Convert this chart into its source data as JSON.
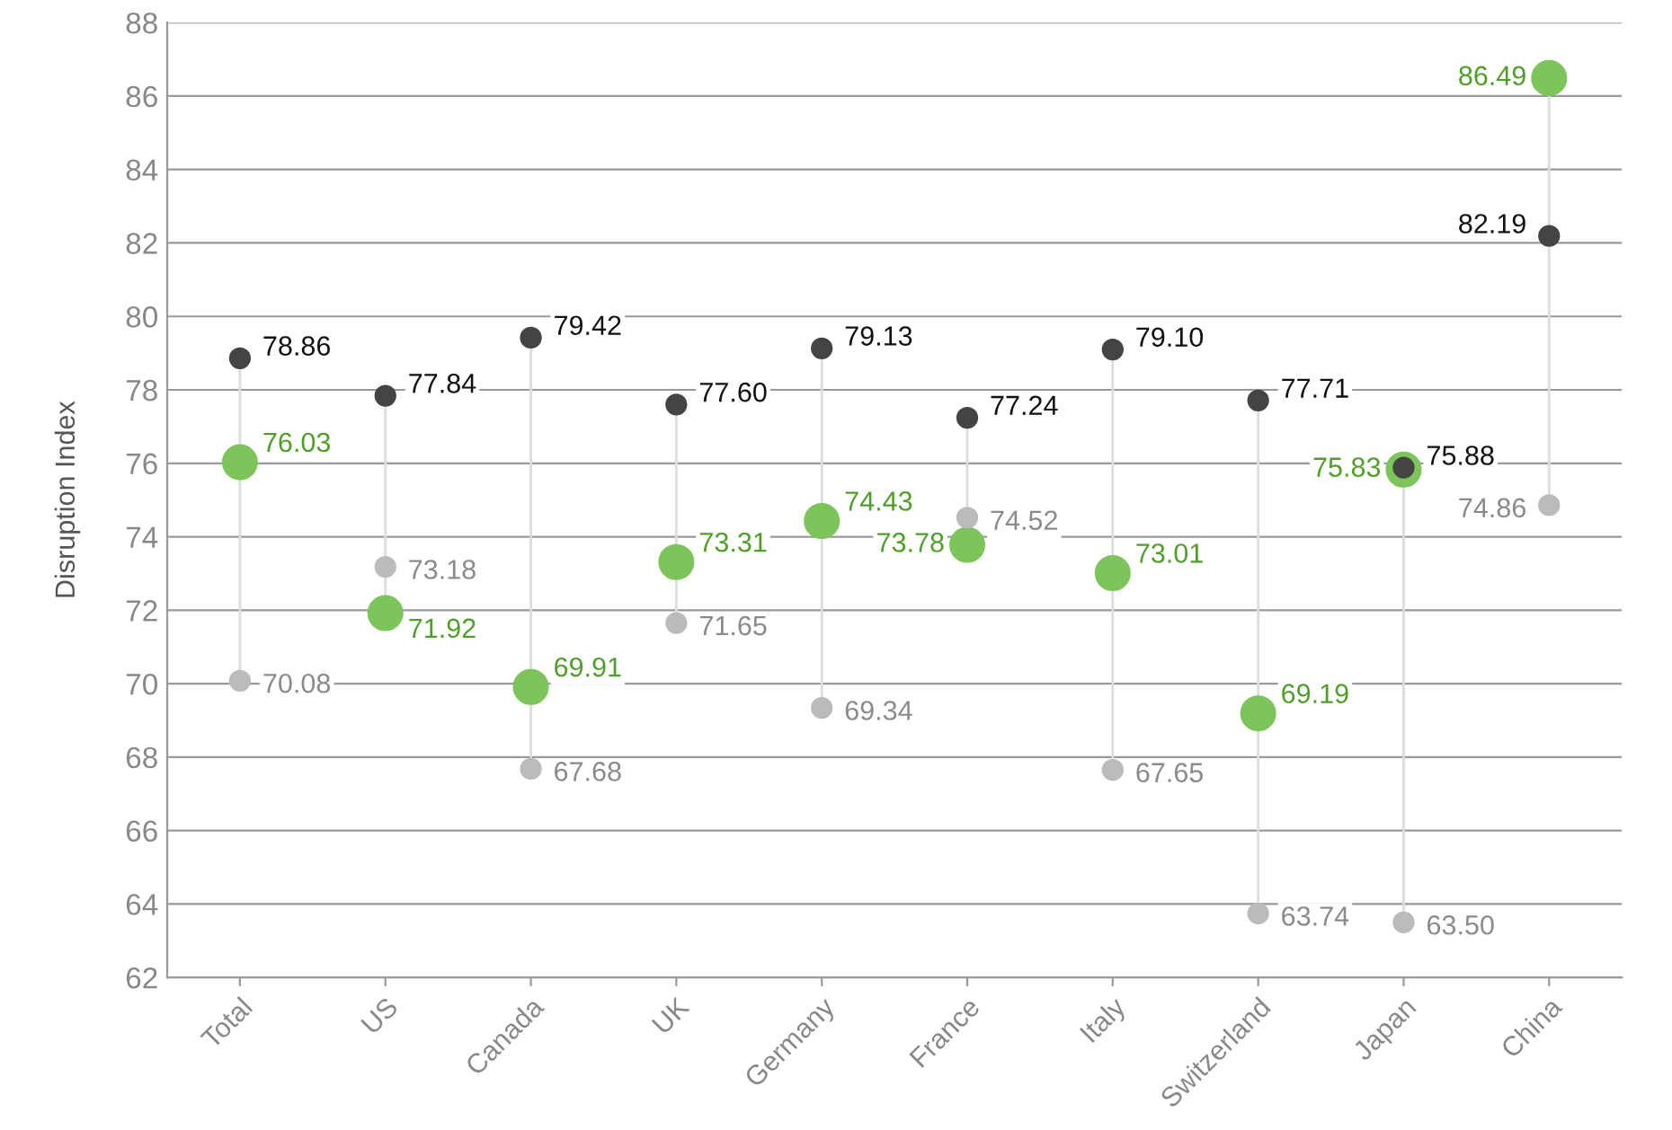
{
  "chart_data": {
    "type": "scatter",
    "ylabel": "Disruption Index",
    "categories": [
      "Total",
      "US",
      "Canada",
      "UK",
      "Germany",
      "France",
      "Italy",
      "Switzerland",
      "Japan",
      "China"
    ],
    "series": [
      {
        "color": "#444444",
        "values": [
          78.86,
          77.84,
          79.42,
          77.6,
          79.13,
          77.24,
          79.1,
          77.71,
          75.88,
          82.19
        ],
        "value_labels": [
          "78.86",
          "77.84",
          "79.42",
          "77.60",
          "79.13",
          "77.24",
          "79.10",
          "77.71",
          "75.88",
          "82.19"
        ]
      },
      {
        "color": "#7dc45a",
        "values": [
          76.03,
          71.92,
          69.91,
          73.31,
          74.43,
          73.78,
          73.01,
          69.19,
          75.83,
          86.49
        ],
        "value_labels": [
          "76.03",
          "71.92",
          "69.91",
          "73.31",
          "74.43",
          "73.78",
          "73.01",
          "69.19",
          "75.83",
          "86.49"
        ]
      },
      {
        "color": "#bbbbbb",
        "values": [
          70.08,
          73.18,
          67.68,
          71.65,
          69.34,
          74.52,
          67.65,
          63.74,
          63.5,
          74.86
        ],
        "value_labels": [
          "70.08",
          "73.18",
          "67.68",
          "71.65",
          "69.34",
          "74.52",
          "67.65",
          "63.74",
          "63.50",
          "74.86"
        ]
      }
    ],
    "ylim": [
      62,
      88
    ],
    "yticks": [
      62,
      64,
      66,
      68,
      70,
      72,
      74,
      76,
      78,
      80,
      82,
      84,
      86,
      88
    ],
    "grid": "y",
    "marker": "circle"
  }
}
